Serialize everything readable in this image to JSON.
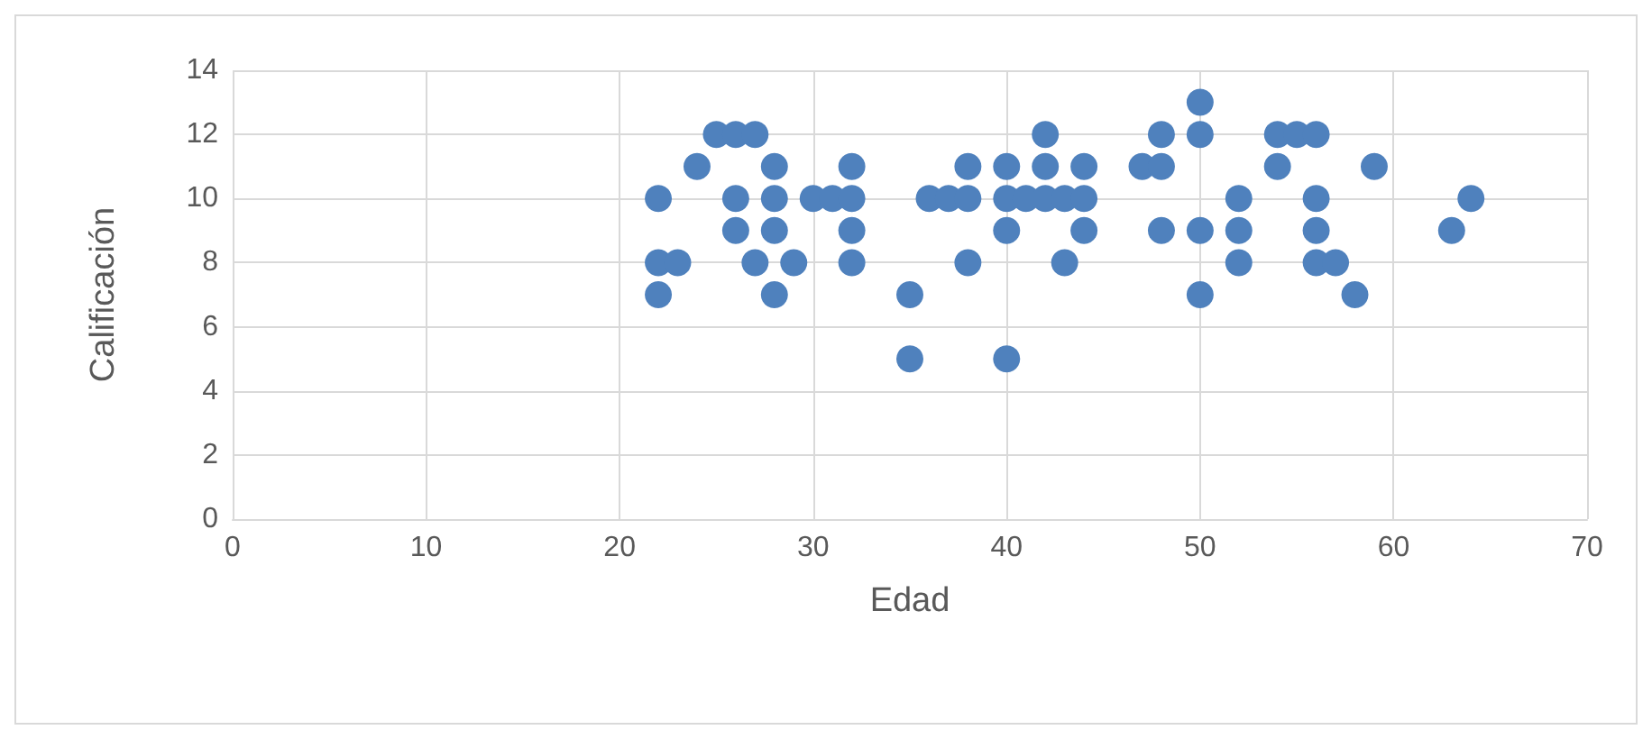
{
  "chart_data": {
    "type": "scatter",
    "xlabel": "Edad",
    "ylabel": "Calificación",
    "color": "#4f81bd",
    "marker": "circle",
    "grid": true,
    "xlim": [
      0,
      70
    ],
    "xticks": [
      0,
      10,
      20,
      30,
      40,
      50,
      60,
      70
    ],
    "ylim": [
      0,
      14
    ],
    "yticks": [
      0,
      2,
      4,
      6,
      8,
      10,
      12,
      14
    ],
    "x": [
      22,
      22,
      22,
      23,
      24,
      25,
      26,
      26,
      26,
      27,
      27,
      28,
      28,
      28,
      28,
      29,
      30,
      31,
      32,
      32,
      32,
      32,
      35,
      35,
      36,
      37,
      38,
      38,
      38,
      40,
      40,
      40,
      40,
      41,
      42,
      42,
      42,
      43,
      43,
      44,
      44,
      44,
      47,
      48,
      48,
      48,
      50,
      50,
      50,
      50,
      52,
      52,
      52,
      54,
      54,
      55,
      56,
      56,
      56,
      56,
      57,
      58,
      59,
      63,
      64
    ],
    "values": [
      10,
      8,
      7,
      8,
      11,
      12,
      12,
      10,
      9,
      12,
      8,
      11,
      10,
      9,
      7,
      8,
      10,
      10,
      11,
      10,
      9,
      8,
      7,
      5,
      10,
      10,
      11,
      10,
      8,
      11,
      10,
      9,
      5,
      10,
      12,
      11,
      10,
      10,
      8,
      11,
      10,
      9,
      11,
      12,
      11,
      9,
      13,
      12,
      9,
      7,
      10,
      9,
      8,
      12,
      11,
      12,
      12,
      10,
      9,
      8,
      8,
      7,
      11,
      9,
      10
    ]
  }
}
